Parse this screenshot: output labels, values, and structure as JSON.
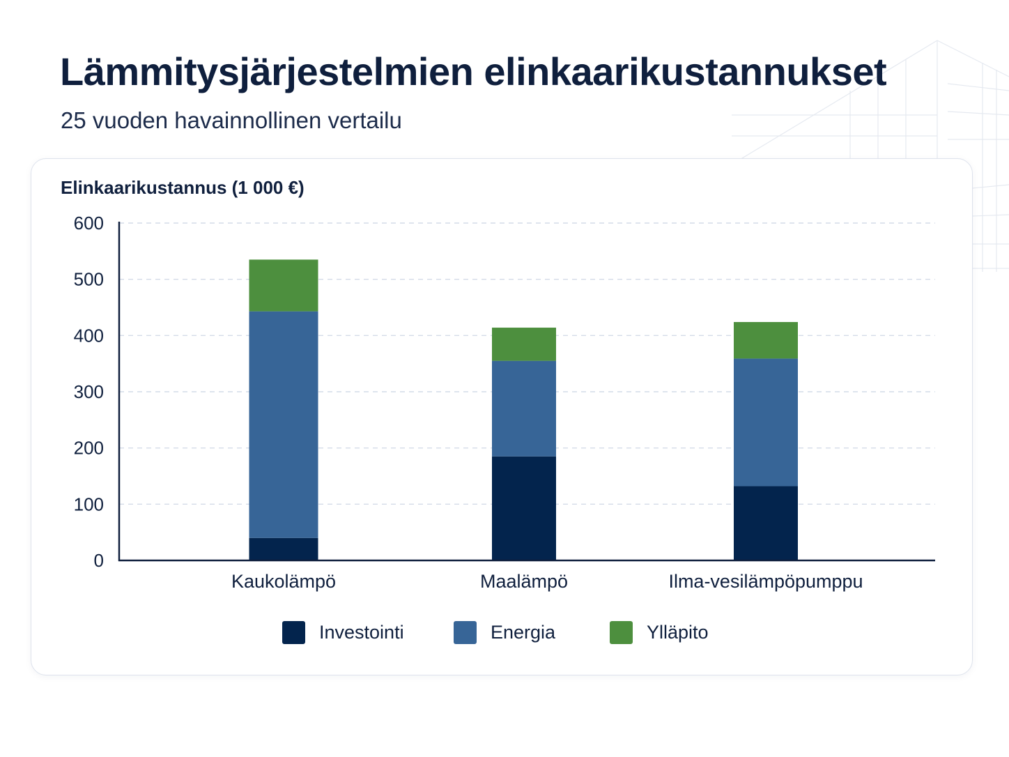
{
  "title": "Lämmitysjärjestelmien elinkaarikustannukset",
  "subtitle": "25 vuoden havainnollinen vertailu",
  "colors": {
    "investointi": "#03244d",
    "energia": "#376597",
    "yllapito": "#4d8f3e",
    "grid": "#d4dbe8",
    "axis": "#0f1f3d"
  },
  "chart_data": {
    "type": "bar",
    "stacked": true,
    "ylabel": "Elinkaarikustannus (1 000 €)",
    "ylim": [
      0,
      600
    ],
    "yticks": [
      "0",
      "100",
      "200",
      "300",
      "400",
      "500",
      "600"
    ],
    "grid": true,
    "legend_position": "bottom",
    "categories": [
      "Kaukolämpö",
      "Maalämpö",
      "Ilma-vesilämpöpumppu"
    ],
    "series": [
      {
        "name": "Investointi",
        "values": [
          40,
          185,
          132
        ]
      },
      {
        "name": "Energia",
        "values": [
          403,
          170,
          227
        ]
      },
      {
        "name": "Ylläpito",
        "values": [
          92,
          59,
          65
        ]
      }
    ]
  }
}
